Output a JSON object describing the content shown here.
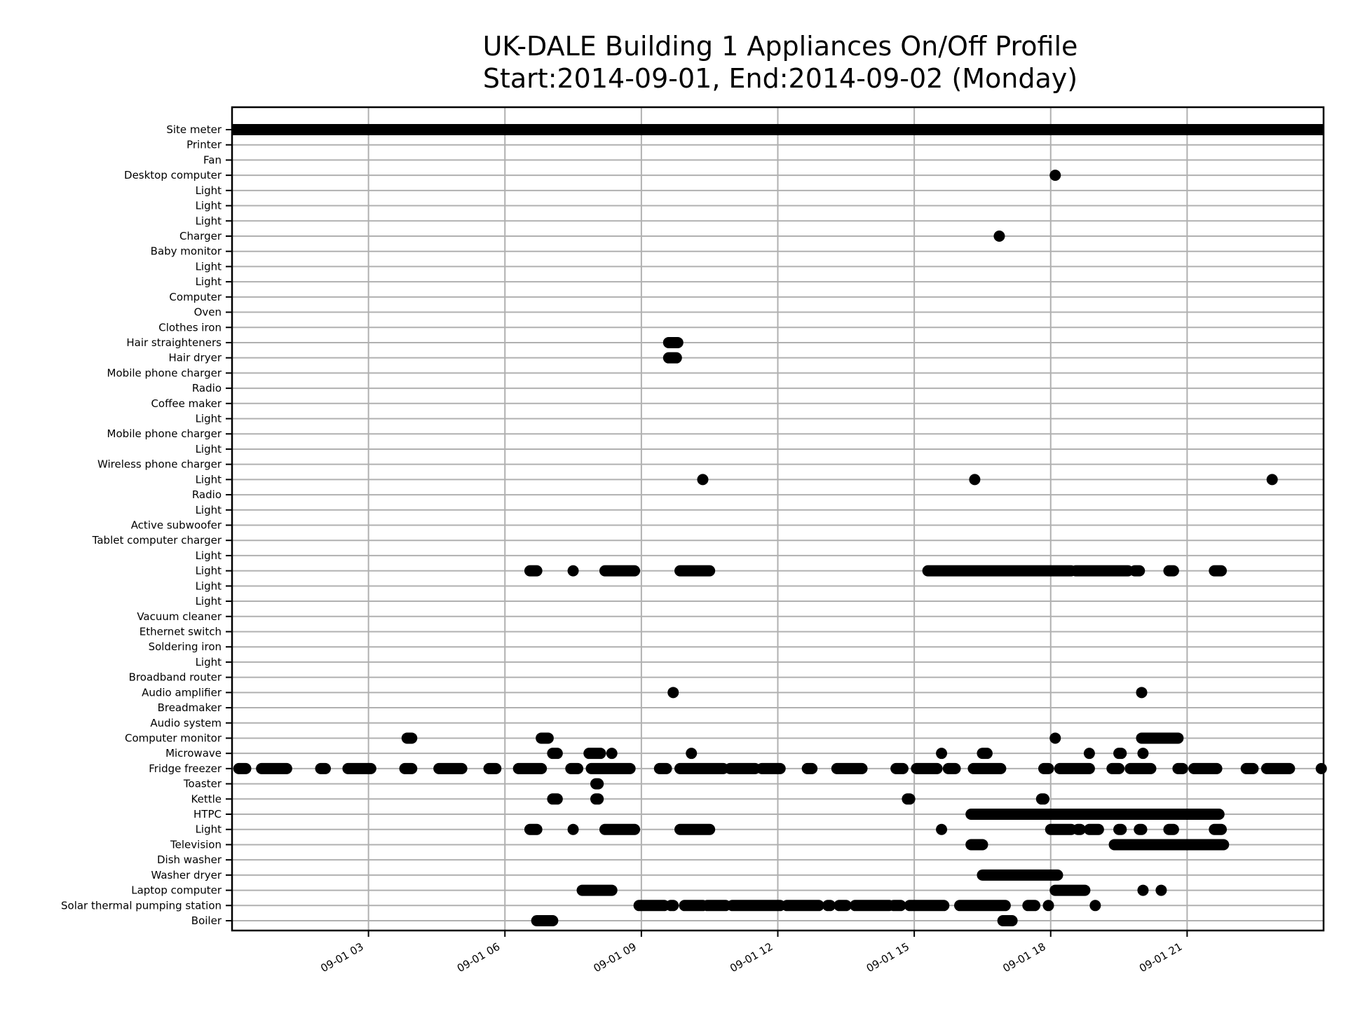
{
  "chart_data": {
    "type": "scatter",
    "title_line1": "UK-DALE Building 1 Appliances On/Off Profile",
    "title_line2": "Start:2014-09-01, End:2014-09-02 (Monday)",
    "xlabel": "",
    "ylabel": "",
    "x_unit": "hours since 2014-09-01 00:00",
    "xlim": [
      0,
      24
    ],
    "xticks": [
      {
        "value": 3,
        "label": "09-01 03"
      },
      {
        "value": 6,
        "label": "09-01 06"
      },
      {
        "value": 9,
        "label": "09-01 09"
      },
      {
        "value": 12,
        "label": "09-01 12"
      },
      {
        "value": 15,
        "label": "09-01 15"
      },
      {
        "value": 18,
        "label": "09-01 18"
      },
      {
        "value": 21,
        "label": "09-01 21"
      }
    ],
    "grid": true,
    "colors": {
      "marker": "#000000",
      "grid": "#b0b0b0",
      "axes": "#000000"
    },
    "series": [
      {
        "name": "Site meter",
        "on": [
          [
            0,
            24
          ]
        ],
        "thick": true
      },
      {
        "name": "Printer",
        "on": []
      },
      {
        "name": "Fan",
        "on": []
      },
      {
        "name": "Desktop computer",
        "on": [
          [
            18.1,
            18.1
          ]
        ]
      },
      {
        "name": "Light",
        "on": []
      },
      {
        "name": "Light",
        "on": []
      },
      {
        "name": "Light",
        "on": []
      },
      {
        "name": "Charger",
        "on": [
          [
            16.87,
            16.87
          ]
        ]
      },
      {
        "name": "Baby monitor",
        "on": []
      },
      {
        "name": "Light",
        "on": []
      },
      {
        "name": "Light",
        "on": []
      },
      {
        "name": "Computer",
        "on": []
      },
      {
        "name": "Oven",
        "on": []
      },
      {
        "name": "Clothes iron",
        "on": []
      },
      {
        "name": "Hair straighteners",
        "on": [
          [
            9.6,
            9.8
          ]
        ]
      },
      {
        "name": "Hair dryer",
        "on": [
          [
            9.6,
            9.77
          ]
        ]
      },
      {
        "name": "Mobile phone charger",
        "on": []
      },
      {
        "name": "Radio",
        "on": []
      },
      {
        "name": "Coffee maker",
        "on": []
      },
      {
        "name": "Light",
        "on": []
      },
      {
        "name": "Mobile phone charger",
        "on": []
      },
      {
        "name": "Light",
        "on": []
      },
      {
        "name": "Wireless phone charger",
        "on": []
      },
      {
        "name": "Light",
        "on": [
          [
            10.35,
            10.35
          ],
          [
            16.33,
            16.33
          ],
          [
            22.87,
            22.87
          ]
        ]
      },
      {
        "name": "Radio",
        "on": []
      },
      {
        "name": "Light",
        "on": []
      },
      {
        "name": "Active subwoofer",
        "on": []
      },
      {
        "name": "Tablet computer charger",
        "on": []
      },
      {
        "name": "Light",
        "on": []
      },
      {
        "name": "Light",
        "on": [
          [
            6.55,
            6.7
          ],
          [
            7.5,
            7.5
          ],
          [
            8.2,
            8.85
          ],
          [
            9.85,
            10.5
          ],
          [
            15.3,
            18.45
          ],
          [
            18.55,
            19.7
          ],
          [
            19.85,
            19.95
          ],
          [
            20.6,
            20.7
          ],
          [
            21.6,
            21.75
          ]
        ]
      },
      {
        "name": "Light",
        "on": []
      },
      {
        "name": "Light",
        "on": []
      },
      {
        "name": "Vacuum cleaner",
        "on": []
      },
      {
        "name": "Ethernet switch",
        "on": []
      },
      {
        "name": "Soldering iron",
        "on": []
      },
      {
        "name": "Light",
        "on": []
      },
      {
        "name": "Broadband router",
        "on": []
      },
      {
        "name": "Audio amplifier",
        "on": [
          [
            9.7,
            9.7
          ],
          [
            20.0,
            20.0
          ]
        ]
      },
      {
        "name": "Breadmaker",
        "on": []
      },
      {
        "name": "Audio system",
        "on": []
      },
      {
        "name": "Computer monitor",
        "on": [
          [
            3.85,
            3.95
          ],
          [
            6.8,
            6.95
          ],
          [
            18.1,
            18.1
          ],
          [
            20.0,
            20.8
          ]
        ]
      },
      {
        "name": "Microwave",
        "on": [
          [
            7.05,
            7.15
          ],
          [
            7.85,
            8.1
          ],
          [
            8.35,
            8.35
          ],
          [
            10.1,
            10.1
          ],
          [
            15.6,
            15.6
          ],
          [
            16.5,
            16.6
          ],
          [
            18.85,
            18.85
          ],
          [
            19.5,
            19.55
          ],
          [
            20.03,
            20.03
          ]
        ]
      },
      {
        "name": "Fridge freezer",
        "on": [
          [
            0.15,
            0.3
          ],
          [
            0.65,
            1.2
          ],
          [
            1.95,
            2.05
          ],
          [
            2.55,
            3.05
          ],
          [
            3.8,
            3.95
          ],
          [
            4.55,
            5.05
          ],
          [
            5.65,
            5.8
          ],
          [
            6.3,
            6.8
          ],
          [
            7.45,
            7.6
          ],
          [
            7.9,
            8.75
          ],
          [
            9.4,
            9.55
          ],
          [
            9.85,
            10.8
          ],
          [
            10.95,
            11.5
          ],
          [
            11.65,
            12.05
          ],
          [
            12.65,
            12.75
          ],
          [
            13.3,
            13.85
          ],
          [
            14.6,
            14.75
          ],
          [
            15.05,
            15.5
          ],
          [
            15.75,
            15.9
          ],
          [
            16.3,
            16.9
          ],
          [
            17.85,
            17.95
          ],
          [
            18.2,
            18.85
          ],
          [
            19.35,
            19.5
          ],
          [
            19.75,
            20.2
          ],
          [
            20.8,
            20.9
          ],
          [
            21.15,
            21.65
          ],
          [
            22.3,
            22.45
          ],
          [
            22.75,
            23.25
          ],
          [
            23.95,
            23.95
          ]
        ]
      },
      {
        "name": "Toaster",
        "on": [
          [
            8.0,
            8.05
          ]
        ]
      },
      {
        "name": "Kettle",
        "on": [
          [
            7.05,
            7.15
          ],
          [
            8.0,
            8.05
          ],
          [
            14.85,
            14.9
          ],
          [
            17.8,
            17.85
          ]
        ]
      },
      {
        "name": "HTPC",
        "on": [
          [
            16.25,
            21.7
          ]
        ]
      },
      {
        "name": "Light",
        "on": [
          [
            6.55,
            6.7
          ],
          [
            7.5,
            7.5
          ],
          [
            8.2,
            8.85
          ],
          [
            9.85,
            10.5
          ],
          [
            15.6,
            15.6
          ],
          [
            18.0,
            18.45
          ],
          [
            18.6,
            18.65
          ],
          [
            18.85,
            19.05
          ],
          [
            19.5,
            19.55
          ],
          [
            19.95,
            20.0
          ],
          [
            20.6,
            20.7
          ],
          [
            21.6,
            21.75
          ]
        ]
      },
      {
        "name": "Television",
        "on": [
          [
            16.25,
            16.5
          ],
          [
            19.4,
            21.8
          ]
        ]
      },
      {
        "name": "Dish washer",
        "on": []
      },
      {
        "name": "Washer dryer",
        "on": [
          [
            16.5,
            18.15
          ]
        ]
      },
      {
        "name": "Laptop computer",
        "on": [
          [
            7.7,
            8.35
          ],
          [
            18.1,
            18.75
          ],
          [
            20.03,
            20.03
          ],
          [
            20.43,
            20.43
          ]
        ]
      },
      {
        "name": "Solar thermal pumping station",
        "on": [
          [
            8.95,
            9.5
          ],
          [
            9.65,
            9.7
          ],
          [
            9.95,
            10.35
          ],
          [
            10.45,
            10.85
          ],
          [
            11.0,
            12.05
          ],
          [
            12.2,
            12.9
          ],
          [
            13.1,
            13.15
          ],
          [
            13.35,
            13.5
          ],
          [
            13.7,
            14.45
          ],
          [
            14.55,
            14.7
          ],
          [
            14.9,
            15.65
          ],
          [
            16.0,
            17.0
          ],
          [
            17.5,
            17.65
          ],
          [
            17.95,
            17.95
          ],
          [
            18.98,
            18.98
          ]
        ]
      },
      {
        "name": "Boiler",
        "on": [
          [
            6.7,
            7.05
          ],
          [
            16.95,
            17.15
          ]
        ]
      }
    ]
  }
}
